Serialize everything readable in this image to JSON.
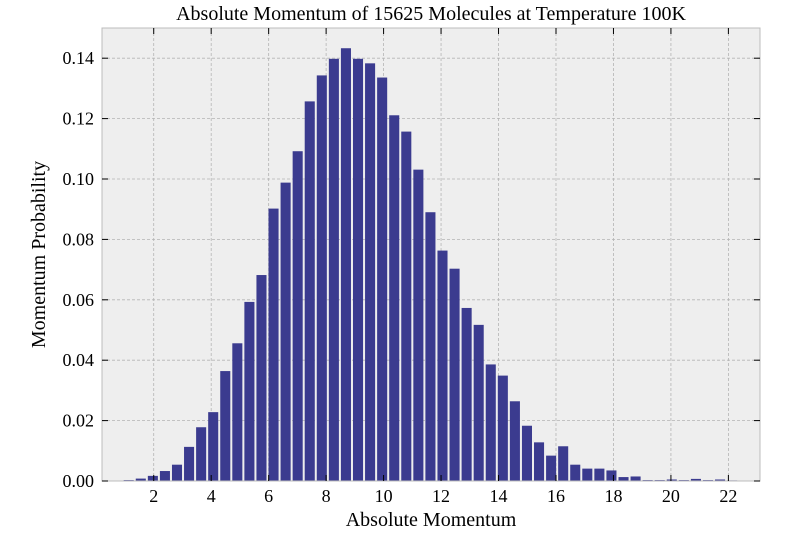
{
  "chart_data": {
    "type": "bar",
    "title": "Absolute Momentum of 15625 Molecules at Temperature 100K",
    "xlabel": "Absolute Momentum",
    "ylabel": "Momentum Probability",
    "xlim": [
      0.2,
      23.1
    ],
    "ylim": [
      0,
      0.15
    ],
    "xticks": [
      2,
      4,
      6,
      8,
      10,
      12,
      14,
      16,
      18,
      20,
      22
    ],
    "xtick_labels": [
      "2",
      "4",
      "6",
      "8",
      "10",
      "12",
      "14",
      "16",
      "18",
      "20",
      "22"
    ],
    "yticks": [
      0,
      0.02,
      0.04,
      0.06,
      0.08,
      0.1,
      0.12,
      0.14
    ],
    "ytick_labels": [
      "0.00",
      "0.02",
      "0.04",
      "0.06",
      "0.08",
      "0.10",
      "0.12",
      "0.14"
    ],
    "bar_width": 0.35,
    "x": [
      1.13,
      1.55,
      1.97,
      2.39,
      2.81,
      3.23,
      3.65,
      4.07,
      4.49,
      4.91,
      5.33,
      5.75,
      6.17,
      6.59,
      7.01,
      7.43,
      7.85,
      8.27,
      8.69,
      9.11,
      9.53,
      9.95,
      10.37,
      10.79,
      11.21,
      11.63,
      12.05,
      12.47,
      12.89,
      13.31,
      13.73,
      14.15,
      14.57,
      14.99,
      15.41,
      15.83,
      16.25,
      16.67,
      17.09,
      17.51,
      17.93,
      18.35,
      18.77,
      19.19,
      19.61,
      20.03,
      20.45,
      20.87,
      21.29,
      21.71,
      22.13
    ],
    "values": [
      0.0003,
      0.0008,
      0.0017,
      0.0033,
      0.0054,
      0.0113,
      0.0178,
      0.0228,
      0.0364,
      0.0456,
      0.0593,
      0.0682,
      0.0902,
      0.0988,
      0.1092,
      0.1257,
      0.1343,
      0.1398,
      0.1433,
      0.1398,
      0.1383,
      0.1336,
      0.1211,
      0.1157,
      0.1031,
      0.089,
      0.0763,
      0.0703,
      0.0573,
      0.0517,
      0.0386,
      0.0349,
      0.0264,
      0.0183,
      0.0128,
      0.0084,
      0.0115,
      0.0054,
      0.0041,
      0.0041,
      0.0035,
      0.0013,
      0.0015,
      0.0003,
      0.0003,
      0.0005,
      0.0003,
      0.0007,
      0.0003,
      0.0005,
      0.0002
    ],
    "bar_color": "#3b3b8f",
    "plot_background": "#eeeeee",
    "grid": true,
    "grid_color": "#b4b4b4"
  }
}
